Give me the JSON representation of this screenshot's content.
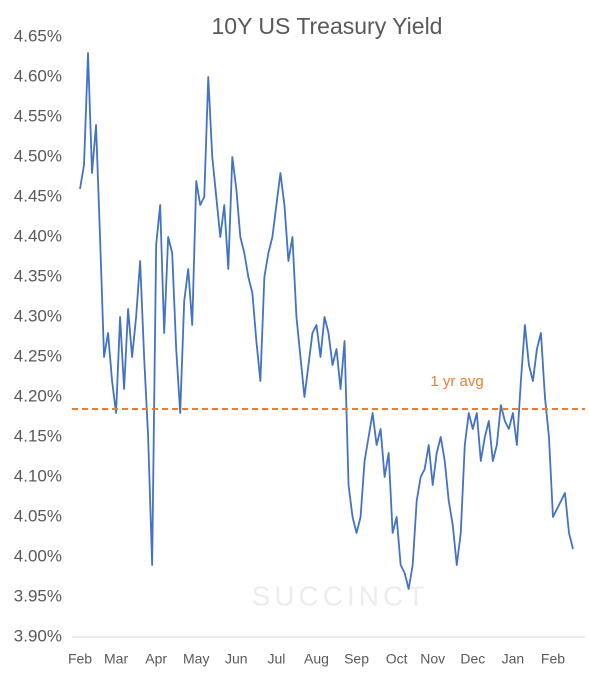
{
  "chart_data": {
    "type": "line",
    "title": "10Y US Treasury Yield",
    "watermark": "SUCCINCT",
    "categories": [
      "Feb",
      null,
      null,
      null,
      null,
      null,
      null,
      null,
      null,
      "Mar",
      null,
      null,
      null,
      null,
      null,
      null,
      null,
      null,
      null,
      "Apr",
      null,
      null,
      null,
      null,
      null,
      null,
      null,
      null,
      null,
      "May",
      null,
      null,
      null,
      null,
      null,
      null,
      null,
      null,
      null,
      "Jun",
      null,
      null,
      null,
      null,
      null,
      null,
      null,
      null,
      null,
      "Jul",
      null,
      null,
      null,
      null,
      null,
      null,
      null,
      null,
      null,
      "Aug",
      null,
      null,
      null,
      null,
      null,
      null,
      null,
      null,
      null,
      "Sep",
      null,
      null,
      null,
      null,
      null,
      null,
      null,
      null,
      null,
      "Oct",
      null,
      null,
      null,
      null,
      null,
      null,
      null,
      null,
      "Nov",
      null,
      null,
      null,
      null,
      null,
      null,
      null,
      null,
      null,
      "Dec",
      null,
      null,
      null,
      null,
      null,
      null,
      null,
      null,
      null,
      "Jan",
      null,
      null,
      null,
      null,
      null,
      null,
      null,
      null,
      null,
      "Feb",
      null,
      null,
      null,
      null,
      null
    ],
    "series": [
      {
        "name": "10Y US Treasury Yield",
        "color": "#4472c4",
        "values": [
          4.46,
          4.49,
          4.63,
          4.48,
          4.54,
          4.4,
          4.25,
          4.28,
          4.22,
          4.18,
          4.3,
          4.21,
          4.31,
          4.25,
          4.3,
          4.37,
          4.25,
          4.15,
          3.99,
          4.39,
          4.44,
          4.28,
          4.4,
          4.38,
          4.26,
          4.18,
          4.32,
          4.36,
          4.29,
          4.47,
          4.44,
          4.45,
          4.6,
          4.5,
          4.45,
          4.4,
          4.44,
          4.36,
          4.5,
          4.46,
          4.4,
          4.38,
          4.35,
          4.33,
          4.27,
          4.22,
          4.35,
          4.38,
          4.4,
          4.44,
          4.48,
          4.44,
          4.37,
          4.4,
          4.3,
          4.25,
          4.2,
          4.24,
          4.28,
          4.29,
          4.25,
          4.3,
          4.28,
          4.24,
          4.26,
          4.21,
          4.27,
          4.09,
          4.05,
          4.03,
          4.05,
          4.12,
          4.15,
          4.18,
          4.14,
          4.16,
          4.1,
          4.13,
          4.03,
          4.05,
          3.99,
          3.98,
          3.96,
          3.99,
          4.07,
          4.1,
          4.11,
          4.14,
          4.09,
          4.13,
          4.15,
          4.12,
          4.07,
          4.04,
          3.99,
          4.03,
          4.14,
          4.18,
          4.16,
          4.18,
          4.12,
          4.15,
          4.17,
          4.12,
          4.14,
          4.19,
          4.17,
          4.16,
          4.18,
          4.14,
          4.22,
          4.29,
          4.24,
          4.22,
          4.26,
          4.28,
          4.2,
          4.15,
          4.05,
          4.06,
          4.07,
          4.08,
          4.03,
          4.01
        ]
      }
    ],
    "average": {
      "value": 4.185,
      "label": "1 yr avg",
      "color": "#ed7d31"
    },
    "ylim": [
      3.9,
      4.65
    ],
    "yticks": [
      {
        "value": 3.9,
        "label": "3.90%"
      },
      {
        "value": 3.95,
        "label": "3.95%"
      },
      {
        "value": 4.0,
        "label": "4.00%"
      },
      {
        "value": 4.05,
        "label": "4.05%"
      },
      {
        "value": 4.1,
        "label": "4.10%"
      },
      {
        "value": 4.15,
        "label": "4.15%"
      },
      {
        "value": 4.2,
        "label": "4.20%"
      },
      {
        "value": 4.25,
        "label": "4.25%"
      },
      {
        "value": 4.3,
        "label": "4.30%"
      },
      {
        "value": 4.35,
        "label": "4.35%"
      },
      {
        "value": 4.4,
        "label": "4.40%"
      },
      {
        "value": 4.45,
        "label": "4.45%"
      },
      {
        "value": 4.5,
        "label": "4.50%"
      },
      {
        "value": 4.55,
        "label": "4.55%"
      },
      {
        "value": 4.6,
        "label": "4.60%"
      },
      {
        "value": 4.65,
        "label": "4.65%"
      }
    ],
    "grid": false
  }
}
